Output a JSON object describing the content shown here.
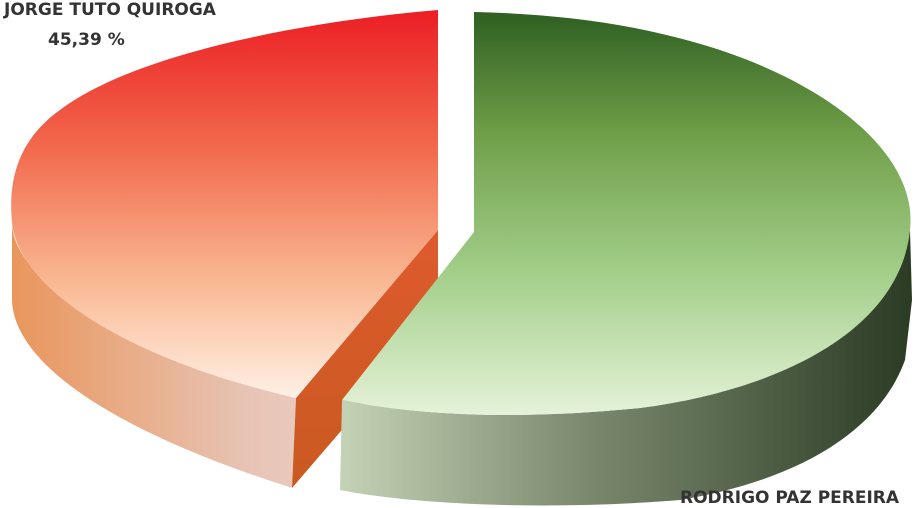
{
  "chart_data": {
    "type": "pie",
    "title": "",
    "style": "3d-exploded",
    "slices": [
      {
        "name": "RODRIGO PAZ PEREIRA",
        "value": 54.61,
        "color_top": "#2f5f22",
        "color_bottom": "#e5f2d8",
        "side_dark": "#2b3b24",
        "side_light": "#c4d2b6"
      },
      {
        "name": "JORGE TUTO QUIROGA",
        "value": 45.39,
        "value_label": "45,39 %",
        "color_top": "#ec1e24",
        "color_bottom": "#fff0e6",
        "side_dark": "#d24818",
        "side_light": "#f0dcd6"
      }
    ]
  },
  "labels": {
    "quiroga_name": "JORGE TUTO QUIROGA",
    "quiroga_pct": "45,39 %",
    "paz_name": "RODRIGO PAZ PEREIRA"
  }
}
